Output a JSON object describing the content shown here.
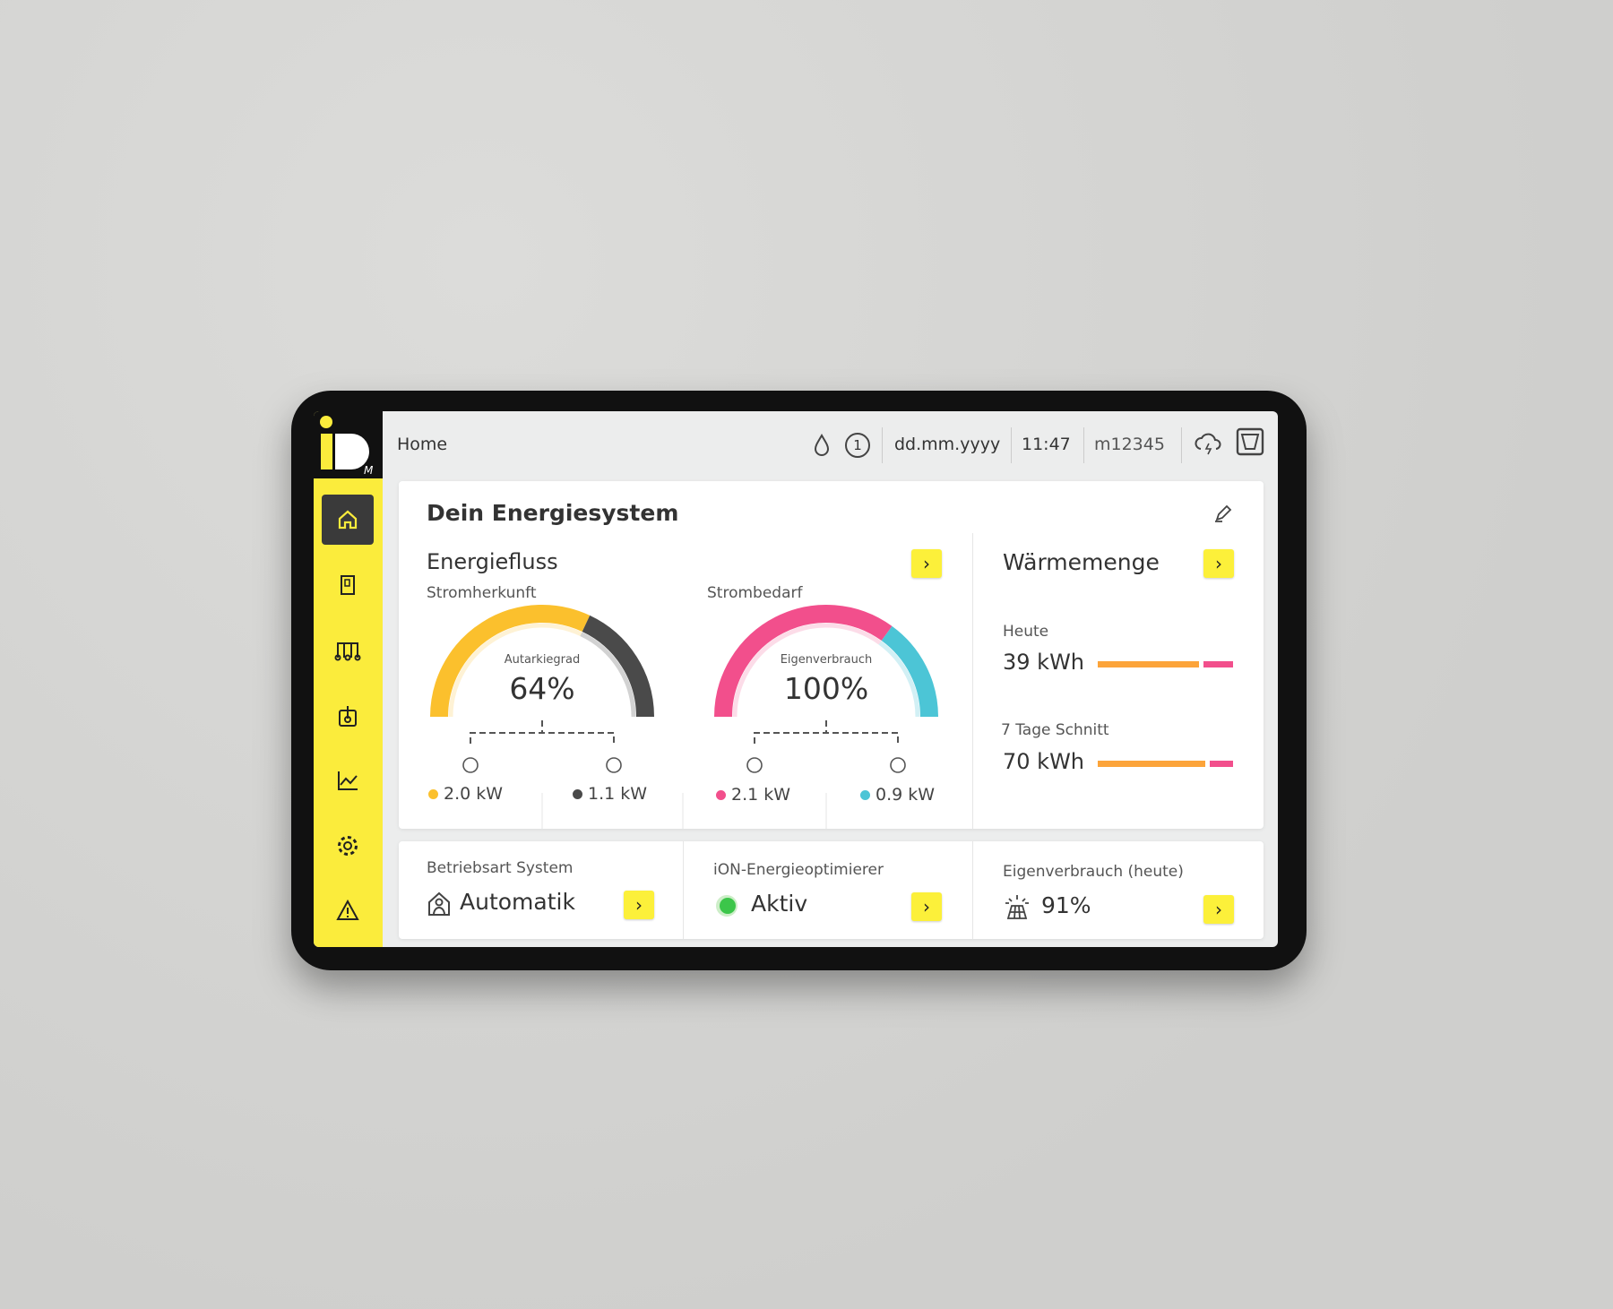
{
  "header": {
    "title": "Home",
    "notification_count": "1",
    "date": "dd.mm.yyyy",
    "time": "11:47",
    "device_id": "m12345"
  },
  "logo": "iDM",
  "sidebar": {
    "items": [
      {
        "icon": "home-icon",
        "active": true
      },
      {
        "icon": "heat-pump-icon"
      },
      {
        "icon": "heating-circuits-icon"
      },
      {
        "icon": "hot-water-icon"
      },
      {
        "icon": "chart-icon"
      },
      {
        "icon": "settings-icon"
      },
      {
        "icon": "warning-icon"
      }
    ]
  },
  "main": {
    "title": "Dein Energiesystem",
    "energiefluss": {
      "title": "Energiefluss",
      "stromherkunft": {
        "label": "Stromherkunft",
        "gauge_label": "Autarkiegrad",
        "gauge_value": "64%",
        "fraction": 0.64,
        "sources": [
          {
            "icon": "solar-panel-icon",
            "value": "2.0 kW",
            "color": "#fbc02d"
          },
          {
            "icon": "power-pylon-icon",
            "value": "1.1 kW",
            "color": "#4a4a4a"
          }
        ]
      },
      "strombedarf": {
        "label": "Strombedarf",
        "gauge_label": "Eigenverbrauch",
        "gauge_value": "100%",
        "fraction": 0.7,
        "sources": [
          {
            "icon": "heat-pump-icon",
            "value": "2.1 kW",
            "color": "#f24f8c"
          },
          {
            "icon": "house-icon",
            "value": "0.9 kW",
            "color": "#4cc5d6"
          }
        ]
      }
    },
    "waermemenge": {
      "title": "Wärmemenge",
      "rows": [
        {
          "label": "Heute",
          "value": "39 kWh",
          "orange": 0.75,
          "pink": 0.25
        },
        {
          "label": "7 Tage Schnitt",
          "value": "70 kWh",
          "orange": 0.82,
          "pink": 0.18
        }
      ]
    }
  },
  "bottom": [
    {
      "label": "Betriebsart System",
      "value": "Automatik",
      "icon": "auto-mode-icon"
    },
    {
      "label": "iON-Energieoptimierer",
      "value": "Aktiv",
      "icon": "status-active-icon"
    },
    {
      "label": "Eigenverbrauch (heute)",
      "value": "91%",
      "icon": "solar-panel-icon"
    }
  ],
  "colors": {
    "brand_yellow": "#fbec3c",
    "orange": "#fca43a",
    "pink": "#f24f8c",
    "cyan": "#4cc5d6",
    "gauge_yellow": "#fbc02d",
    "dark": "#4a4a4a",
    "active_green": "#3cc64a"
  }
}
